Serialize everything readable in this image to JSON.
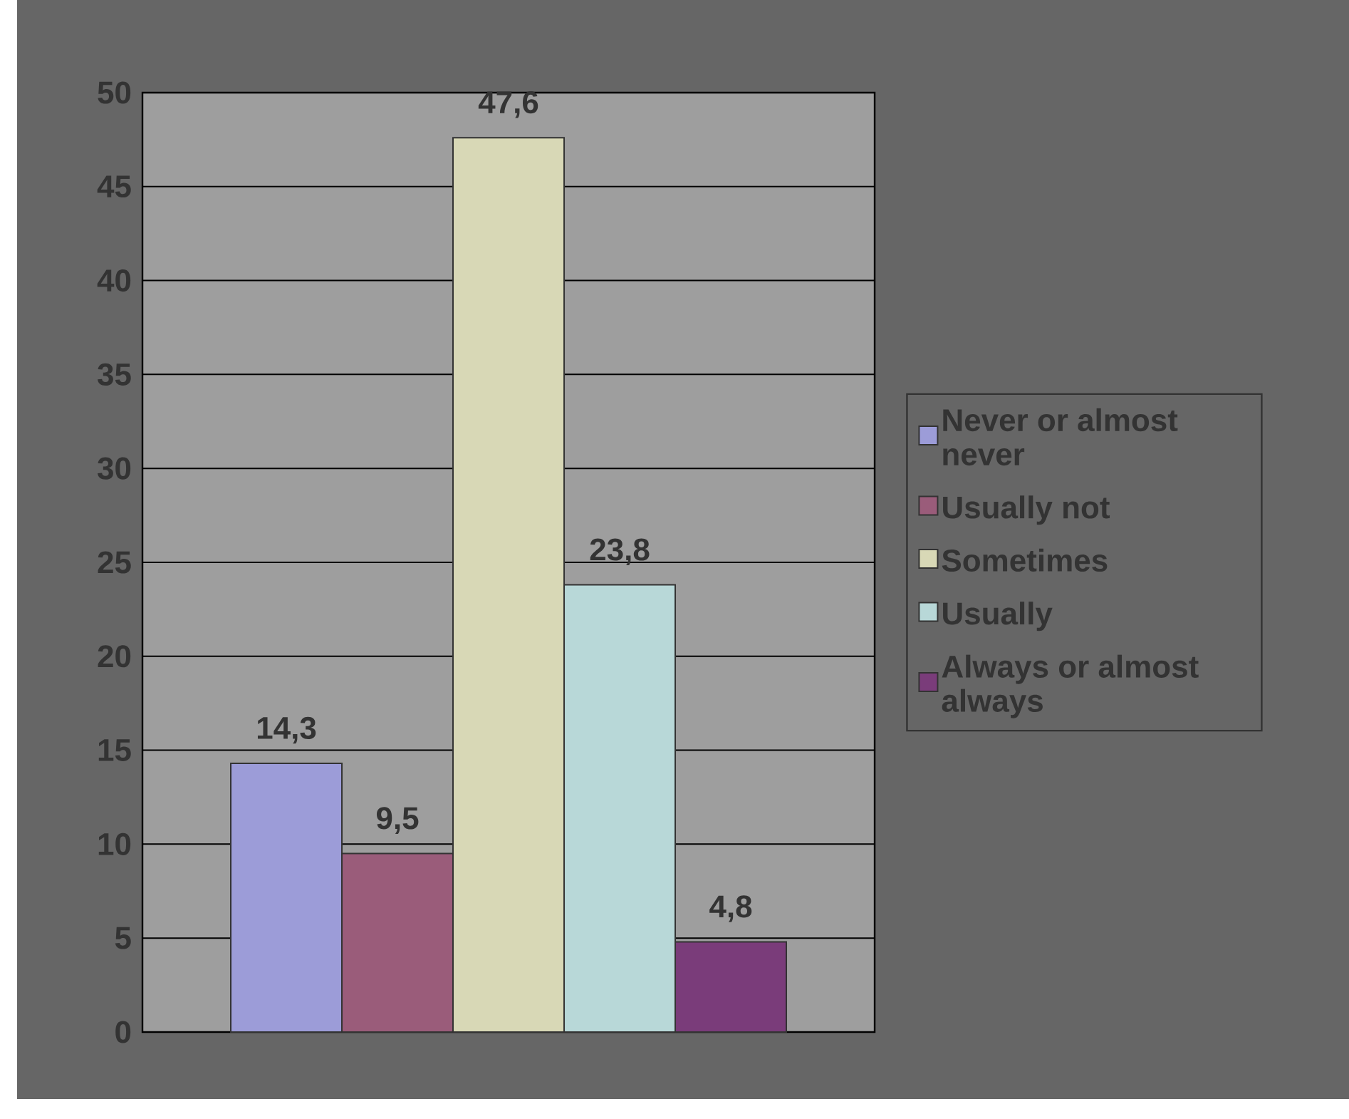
{
  "chart_data": {
    "type": "bar",
    "categories": [
      null
    ],
    "series": [
      {
        "name": "Never or almost never",
        "color": "#9c9cd8",
        "values": [
          14.3
        ],
        "value_labels": [
          "14,3"
        ]
      },
      {
        "name": "Usually not",
        "color": "#9a5c7a",
        "values": [
          9.5
        ],
        "value_labels": [
          "9,5"
        ]
      },
      {
        "name": "Sometimes",
        "color": "#d8d8b6",
        "values": [
          47.6
        ],
        "value_labels": [
          "47,6"
        ]
      },
      {
        "name": "Usually",
        "color": "#b8d8d8",
        "values": [
          23.8
        ],
        "value_labels": [
          "23,8"
        ]
      },
      {
        "name": "Always or almost always",
        "color": "#7a3c7a",
        "values": [
          4.8
        ],
        "value_labels": [
          "4,8"
        ]
      }
    ],
    "ylim": [
      0,
      50
    ],
    "yticks": [
      0,
      5,
      10,
      15,
      20,
      25,
      30,
      35,
      40,
      45,
      50
    ],
    "grid": "y",
    "legend": "right"
  }
}
